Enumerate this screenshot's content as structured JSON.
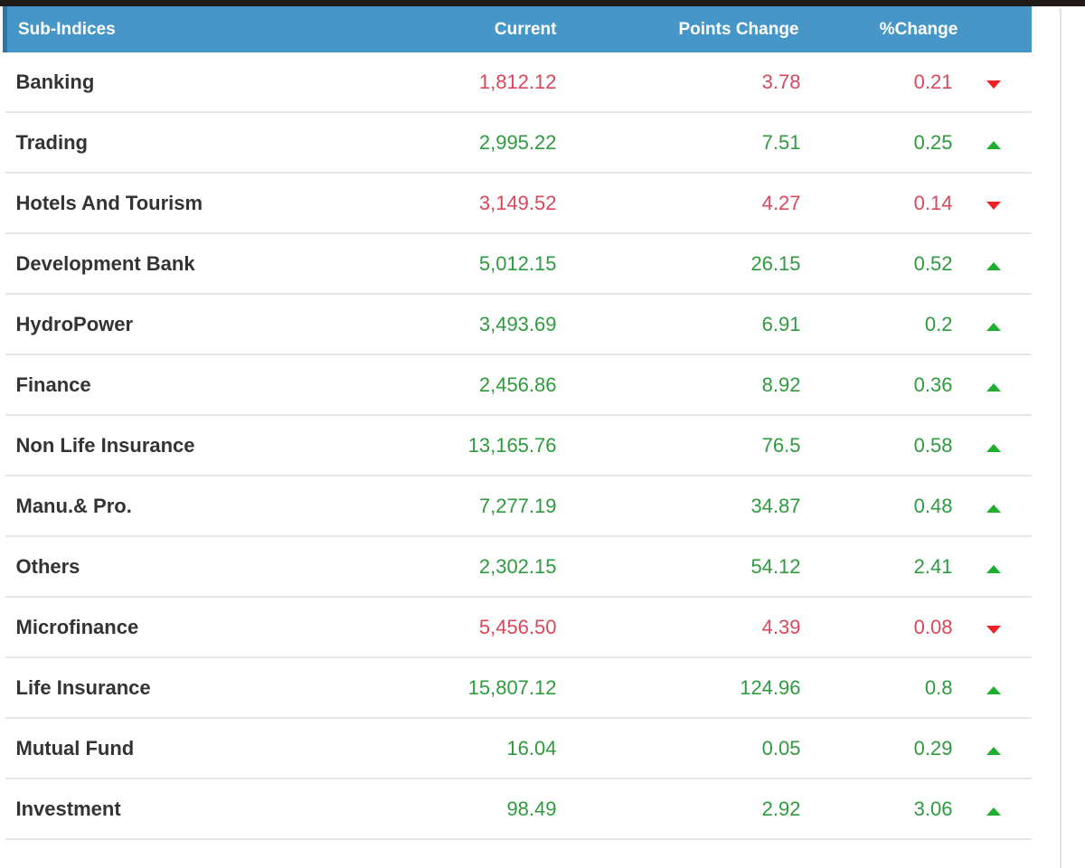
{
  "top_bar": {
    "color": "#201b19"
  },
  "divider_color": "#e3e3e3",
  "table": {
    "headers": {
      "name": "Sub-Indices",
      "current": "Current",
      "points": "Points Change",
      "pct": "%Change"
    },
    "colors": {
      "header_bg": "#4697c8",
      "header_edge": "#2f74a4",
      "label": "#333333",
      "separator": "#e7e7e7",
      "up": "#2e9b3f",
      "down": "#d9485a",
      "arrow_up": "#1fae2e",
      "arrow_down": "#ee2222"
    },
    "rows": [
      {
        "name": "Banking",
        "current": "1,812.12",
        "points": "3.78",
        "pct": "0.21",
        "trend": "down"
      },
      {
        "name": "Trading",
        "current": "2,995.22",
        "points": "7.51",
        "pct": "0.25",
        "trend": "up"
      },
      {
        "name": "Hotels And Tourism",
        "current": "3,149.52",
        "points": "4.27",
        "pct": "0.14",
        "trend": "down"
      },
      {
        "name": "Development Bank",
        "current": "5,012.15",
        "points": "26.15",
        "pct": "0.52",
        "trend": "up"
      },
      {
        "name": "HydroPower",
        "current": "3,493.69",
        "points": "6.91",
        "pct": "0.2",
        "trend": "up"
      },
      {
        "name": "Finance",
        "current": "2,456.86",
        "points": "8.92",
        "pct": "0.36",
        "trend": "up"
      },
      {
        "name": "Non Life Insurance",
        "current": "13,165.76",
        "points": "76.5",
        "pct": "0.58",
        "trend": "up"
      },
      {
        "name": "Manu.& Pro.",
        "current": "7,277.19",
        "points": "34.87",
        "pct": "0.48",
        "trend": "up"
      },
      {
        "name": "Others",
        "current": "2,302.15",
        "points": "54.12",
        "pct": "2.41",
        "trend": "up"
      },
      {
        "name": "Microfinance",
        "current": "5,456.50",
        "points": "4.39",
        "pct": "0.08",
        "trend": "down"
      },
      {
        "name": "Life Insurance",
        "current": "15,807.12",
        "points": "124.96",
        "pct": "0.8",
        "trend": "up"
      },
      {
        "name": "Mutual Fund",
        "current": "16.04",
        "points": "0.05",
        "pct": "0.29",
        "trend": "up"
      },
      {
        "name": "Investment",
        "current": "98.49",
        "points": "2.92",
        "pct": "3.06",
        "trend": "up"
      }
    ]
  }
}
